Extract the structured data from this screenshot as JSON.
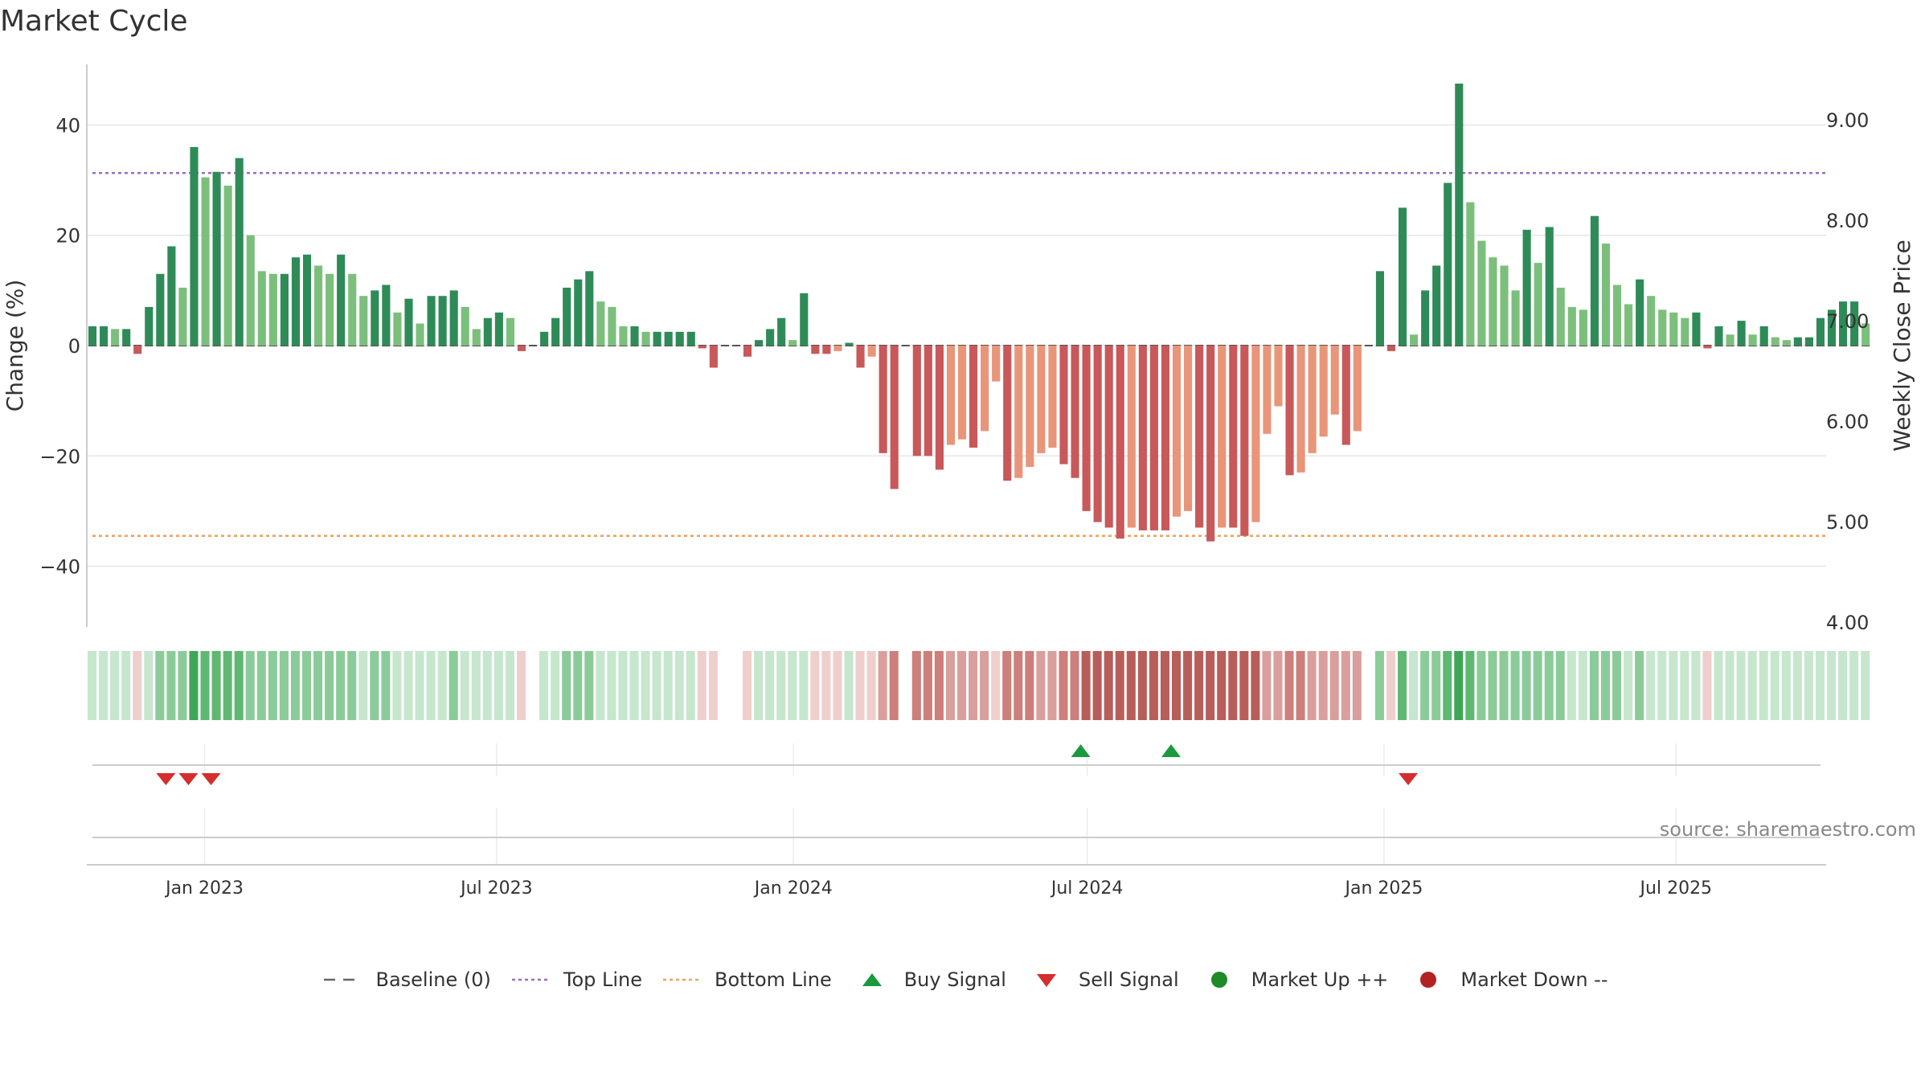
{
  "title": "Market Cycle",
  "source": "source: sharemaestro.com",
  "chart_data": {
    "type": "bar",
    "title": "Market Cycle",
    "xlabel": "",
    "ylabel": "Change (%)",
    "y2label": "Weekly Close Price",
    "ylim": [
      -51,
      51
    ],
    "y2lim": [
      3.95,
      9.55
    ],
    "yticks": [
      -40,
      -20,
      0,
      20,
      40
    ],
    "yticklabels": [
      "−40",
      "−20",
      "0",
      "20",
      "40"
    ],
    "y2ticks": [
      4,
      5,
      6,
      7,
      8,
      9
    ],
    "y2ticklabels": [
      "4.00",
      "5.00",
      "6.00",
      "7.00",
      "8.00",
      "9.00"
    ],
    "x_start": "2022-10-20",
    "x_end": "2025-10-02",
    "xticks": [
      {
        "date": "2023-01-01",
        "label": "Jan 2023"
      },
      {
        "date": "2023-07-01",
        "label": "Jul 2023"
      },
      {
        "date": "2024-01-01",
        "label": "Jan 2024"
      },
      {
        "date": "2024-07-01",
        "label": "Jul 2024"
      },
      {
        "date": "2025-01-01",
        "label": "Jan 2025"
      },
      {
        "date": "2025-07-01",
        "label": "Jul 2025"
      }
    ],
    "top_line": 31.3,
    "bottom_line": -34.5,
    "first_week": "2022-10-20",
    "week_step_days": 7,
    "series": [
      {
        "name": "Change (%)",
        "values": [
          3.5,
          3.5,
          3,
          3,
          -1.5,
          7,
          13,
          18,
          10.5,
          36,
          30.5,
          31.5,
          29,
          34,
          20,
          13.5,
          13,
          13,
          16,
          16.5,
          14.5,
          13,
          16.5,
          13,
          9,
          10,
          11,
          6,
          8.5,
          4,
          9,
          9,
          10,
          7,
          3,
          5,
          6,
          5,
          -1,
          0,
          2.5,
          5,
          10.5,
          12,
          13.5,
          8,
          7,
          3.5,
          3.5,
          2.5,
          2.5,
          2.5,
          2.5,
          2.5,
          -0.5,
          -4,
          0,
          0,
          -2,
          1,
          3,
          5,
          1,
          9.5,
          -1.5,
          -1.5,
          -1,
          0.5,
          -4,
          -2,
          -19.5,
          -26,
          0,
          -20,
          -20,
          -22.5,
          -18,
          -17,
          -18.5,
          -15.5,
          -6.5,
          -24.5,
          -24,
          -22,
          -19.5,
          -18.5,
          -21.5,
          -24,
          -30,
          -32,
          -33,
          -35,
          -33,
          -33.5,
          -33.5,
          -33.5,
          -31,
          -30,
          -33,
          -35.5,
          -33,
          -33,
          -34.5,
          -32,
          -16,
          -11,
          -23.5,
          -23,
          -19.5,
          -16.5,
          -12.5,
          -18,
          -15.5,
          0,
          13.5,
          -1,
          25,
          2,
          10,
          14.5,
          29.5,
          47.5,
          26,
          19,
          16,
          14.5,
          10,
          21,
          15,
          21.5,
          10.5,
          7,
          6.5,
          23.5,
          18.5,
          11,
          7.5,
          12,
          9,
          6.5,
          6,
          5,
          6,
          -0.5,
          3.5,
          2,
          4.5,
          2,
          3.5,
          1.5,
          1,
          1.5,
          1.5,
          5,
          6.5,
          8,
          8,
          4
        ]
      }
    ],
    "heatmap_palette": [
      "#a8d8b4",
      "#8bcb99",
      "#5fb872",
      "#3fa657",
      "#efcfcd",
      "#d99f9c",
      "#cc7f7b",
      "#b85e5a"
    ],
    "signals": {
      "buy": [
        "2024-06-27",
        "2024-08-22"
      ],
      "sell": [
        "2022-12-08",
        "2022-12-22",
        "2023-01-05",
        "2025-01-16"
      ]
    },
    "legend": [
      {
        "label": "Baseline (0)",
        "swatch": "dash",
        "color": "#666666"
      },
      {
        "label": "Top Line",
        "swatch": "dotted",
        "color": "#9b6cc4"
      },
      {
        "label": "Bottom Line",
        "swatch": "dotted",
        "color": "#f0a05a"
      },
      {
        "label": "Buy Signal",
        "swatch": "triangle-up",
        "color": "#1a9a3c"
      },
      {
        "label": "Sell Signal",
        "swatch": "triangle-down",
        "color": "#d42e2e"
      },
      {
        "label": "Market Up ++",
        "swatch": "circle",
        "color": "#1e8a28"
      },
      {
        "label": "Market Down --",
        "swatch": "circle",
        "color": "#b22222"
      }
    ],
    "colors": {
      "pos_strong": "#2e8b57",
      "pos_light": "#7cbf7c",
      "neg_strong": "#c8585a",
      "neg_light": "#e8957a",
      "grid": "#e6e6e6",
      "axis": "#bbbbbb"
    }
  }
}
